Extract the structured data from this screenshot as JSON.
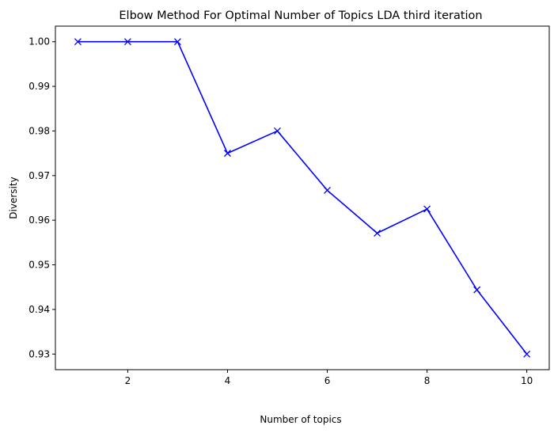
{
  "chart_data": {
    "type": "line",
    "title": "Elbow Method For Optimal Number of Topics LDA third iteration",
    "xlabel": "Number of topics",
    "ylabel": "Diversity",
    "xlim": [
      0.55,
      10.45
    ],
    "ylim": [
      0.9265,
      1.0035
    ],
    "xticks": [
      2,
      4,
      6,
      8,
      10
    ],
    "yticks": [
      0.93,
      0.94,
      0.95,
      0.96,
      0.97,
      0.98,
      0.99,
      1.0
    ],
    "ytick_labels": [
      "0.93",
      "0.94",
      "0.95",
      "0.96",
      "0.97",
      "0.98",
      "0.99",
      "1.00"
    ],
    "grid": false,
    "series": [
      {
        "color": "#0000ff",
        "marker": "x",
        "x": [
          1,
          2,
          3,
          4,
          5,
          6,
          7,
          8,
          9,
          10
        ],
        "y": [
          1.0,
          1.0,
          1.0,
          0.975,
          0.98,
          0.9667,
          0.9571,
          0.9625,
          0.9444,
          0.93
        ]
      }
    ]
  }
}
